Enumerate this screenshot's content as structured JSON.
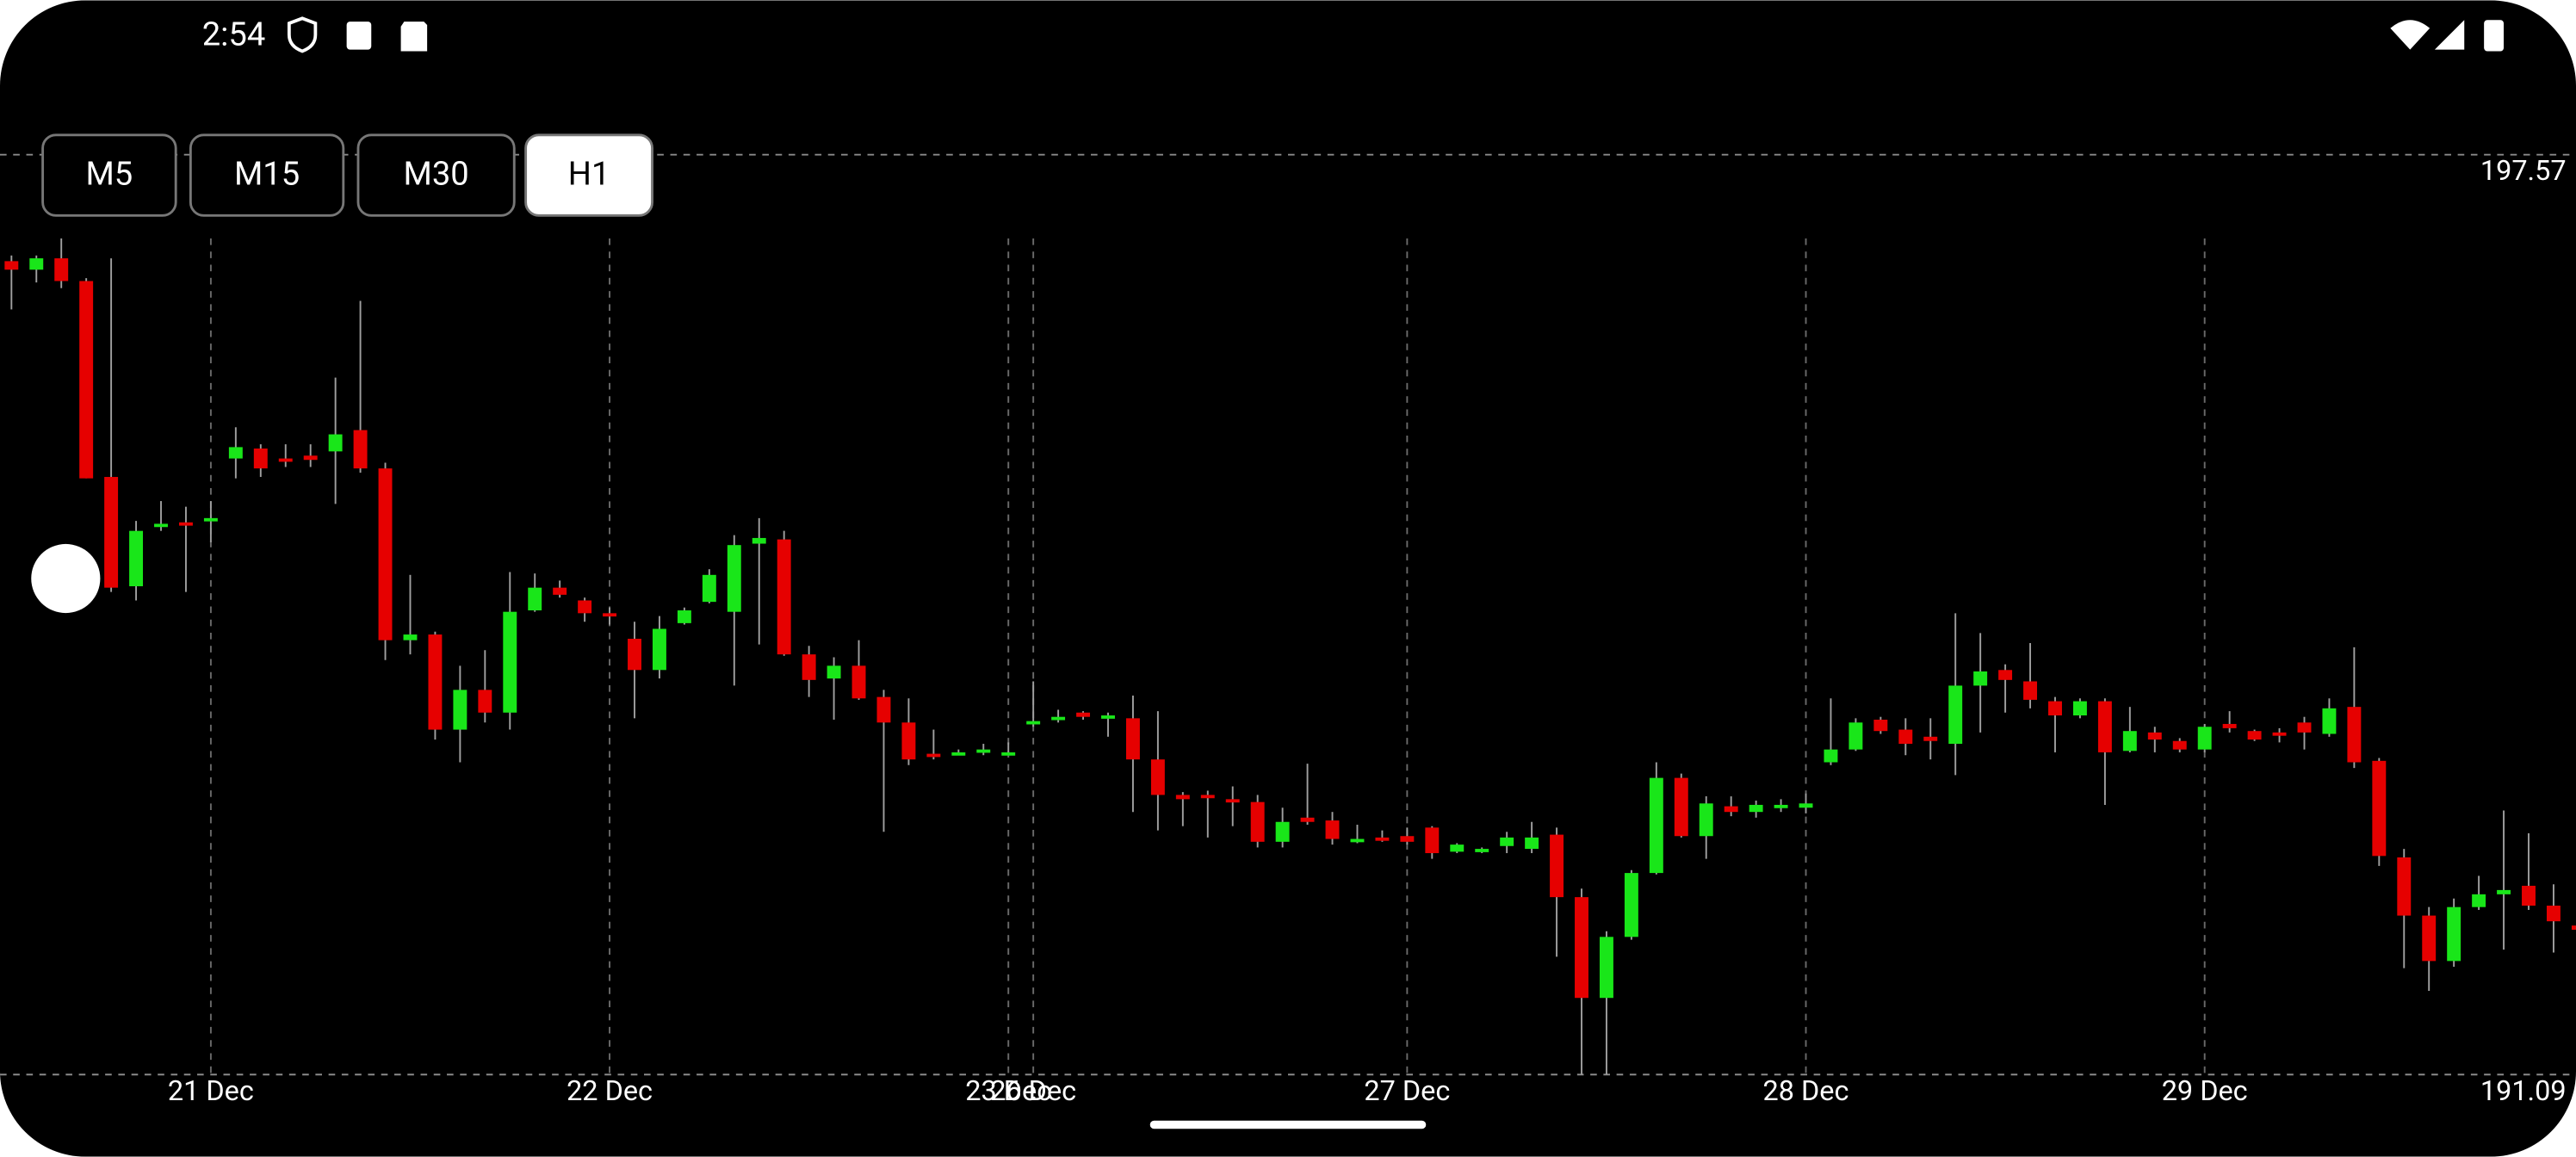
{
  "status_bar": {
    "time": "2:54"
  },
  "timeframes": [
    "M5",
    "M15",
    "M30",
    "H1"
  ],
  "selected_timeframe": 3,
  "chart_data": {
    "type": "candlestick",
    "up_color": "#19e619",
    "down_color": "#e60000",
    "ylim": [
      191.09,
      197.57
    ],
    "yticks": [
      191.09,
      197.57
    ],
    "xlim": [
      -0.46,
      102.9
    ],
    "xticks": [
      {
        "value": 8,
        "label": "21 Dec"
      },
      {
        "value": 24,
        "label": "22 Dec"
      },
      {
        "value": 40,
        "label": "23 Dec"
      },
      {
        "value": 41,
        "label": "26 Dec"
      },
      {
        "value": 56,
        "label": "27 Dec"
      },
      {
        "value": 72,
        "label": "28 Dec"
      },
      {
        "value": 88,
        "label": "29 Dec"
      }
    ],
    "grid": true,
    "open": [
      196.82,
      196.76,
      196.84,
      196.68,
      195.3,
      194.53,
      194.96,
      194.98,
      194.99,
      195.43,
      195.5,
      195.43,
      195.45,
      195.48,
      195.63,
      195.36,
      194.15,
      194.19,
      193.52,
      193.8,
      193.64,
      194.36,
      194.52,
      194.43,
      194.34,
      194.16,
      193.94,
      194.27,
      194.42,
      194.35,
      194.83,
      194.86,
      194.05,
      193.88,
      193.97,
      193.75,
      193.57,
      193.35,
      193.35,
      193.36,
      193.35,
      193.56,
      193.59,
      193.64,
      193.6,
      193.6,
      193.31,
      193.06,
      193.06,
      193.03,
      193.01,
      192.73,
      192.9,
      192.88,
      192.73,
      192.76,
      192.77,
      192.83,
      192.66,
      192.66,
      192.7,
      192.68,
      192.78,
      192.34,
      191.63,
      192.06,
      192.51,
      193.18,
      192.77,
      192.98,
      192.94,
      192.98,
      192.97,
      193.29,
      193.38,
      193.59,
      193.52,
      193.47,
      193.42,
      193.83,
      193.94,
      193.86,
      193.72,
      193.62,
      193.72,
      193.37,
      193.5,
      193.44,
      193.38,
      193.56,
      193.51,
      193.5,
      193.57,
      193.49,
      193.68,
      193.3,
      192.62,
      192.21,
      191.89,
      192.27,
      192.36,
      192.42,
      192.28,
      192.14
    ],
    "high": [
      196.86,
      196.86,
      196.98,
      196.7,
      196.84,
      194.99,
      195.13,
      195.09,
      195.13,
      195.65,
      195.53,
      195.53,
      195.53,
      196.0,
      196.54,
      195.4,
      194.61,
      194.21,
      193.97,
      194.08,
      194.63,
      194.62,
      194.57,
      194.45,
      194.38,
      194.28,
      194.32,
      194.38,
      194.65,
      194.89,
      195.01,
      194.92,
      194.11,
      194.03,
      194.15,
      193.8,
      193.74,
      193.52,
      193.38,
      193.42,
      193.43,
      193.86,
      193.66,
      193.65,
      193.64,
      193.76,
      193.65,
      193.08,
      193.09,
      193.12,
      193.06,
      192.97,
      193.28,
      192.94,
      192.85,
      192.81,
      192.83,
      192.84,
      192.72,
      192.69,
      192.8,
      192.87,
      192.83,
      192.4,
      192.1,
      192.53,
      193.29,
      193.21,
      193.05,
      193.05,
      193.02,
      193.03,
      193.07,
      193.74,
      193.6,
      193.61,
      193.6,
      193.6,
      194.34,
      194.2,
      193.98,
      194.13,
      193.75,
      193.74,
      193.74,
      193.68,
      193.54,
      193.46,
      193.56,
      193.65,
      193.52,
      193.53,
      193.61,
      193.74,
      194.1,
      193.32,
      192.68,
      192.27,
      192.33,
      192.49,
      192.95,
      192.79,
      192.43,
      192.18
    ],
    "low": [
      196.48,
      196.67,
      196.63,
      195.29,
      194.49,
      194.43,
      194.92,
      194.49,
      194.84,
      195.29,
      195.3,
      195.37,
      195.37,
      195.11,
      195.33,
      194.01,
      194.05,
      193.45,
      193.29,
      193.57,
      193.52,
      194.35,
      194.45,
      194.28,
      194.26,
      193.6,
      193.88,
      194.26,
      194.41,
      193.83,
      194.12,
      194.04,
      193.75,
      193.59,
      193.73,
      192.8,
      193.27,
      193.31,
      193.34,
      193.34,
      193.34,
      193.54,
      193.57,
      193.59,
      193.47,
      192.94,
      192.81,
      192.84,
      192.76,
      192.84,
      192.69,
      192.69,
      192.85,
      192.71,
      192.72,
      192.73,
      192.71,
      192.61,
      192.65,
      192.65,
      192.65,
      192.65,
      191.92,
      191.09,
      191.09,
      192.04,
      192.5,
      192.76,
      192.61,
      192.91,
      192.9,
      192.94,
      192.93,
      193.27,
      193.37,
      193.49,
      193.34,
      193.31,
      193.2,
      193.5,
      193.64,
      193.67,
      193.36,
      193.6,
      192.99,
      193.36,
      193.36,
      193.36,
      193.36,
      193.5,
      193.44,
      193.43,
      193.38,
      193.47,
      193.25,
      192.56,
      191.84,
      191.68,
      191.85,
      192.25,
      191.97,
      192.25,
      191.95,
      192.07
    ],
    "close": [
      196.76,
      196.84,
      196.68,
      195.29,
      194.52,
      194.92,
      194.97,
      194.96,
      195.01,
      195.51,
      195.36,
      195.42,
      195.42,
      195.6,
      195.36,
      194.15,
      194.19,
      193.52,
      193.8,
      193.64,
      194.35,
      194.52,
      194.47,
      194.34,
      194.32,
      193.94,
      194.23,
      194.36,
      194.61,
      194.82,
      194.87,
      194.05,
      193.87,
      193.97,
      193.74,
      193.57,
      193.31,
      193.34,
      193.36,
      193.38,
      193.36,
      193.58,
      193.61,
      193.61,
      193.62,
      193.31,
      193.06,
      193.03,
      193.05,
      193.01,
      192.73,
      192.87,
      192.87,
      192.75,
      192.75,
      192.75,
      192.73,
      192.65,
      192.71,
      192.68,
      192.76,
      192.76,
      192.34,
      191.63,
      192.06,
      192.51,
      193.18,
      192.77,
      193.0,
      192.94,
      192.99,
      192.99,
      193.0,
      193.38,
      193.57,
      193.51,
      193.42,
      193.44,
      193.83,
      193.93,
      193.87,
      193.73,
      193.62,
      193.72,
      193.36,
      193.51,
      193.45,
      193.38,
      193.54,
      193.53,
      193.45,
      193.49,
      193.5,
      193.67,
      193.29,
      192.63,
      192.21,
      191.89,
      192.27,
      192.36,
      192.39,
      192.28,
      192.17,
      192.11
    ]
  }
}
